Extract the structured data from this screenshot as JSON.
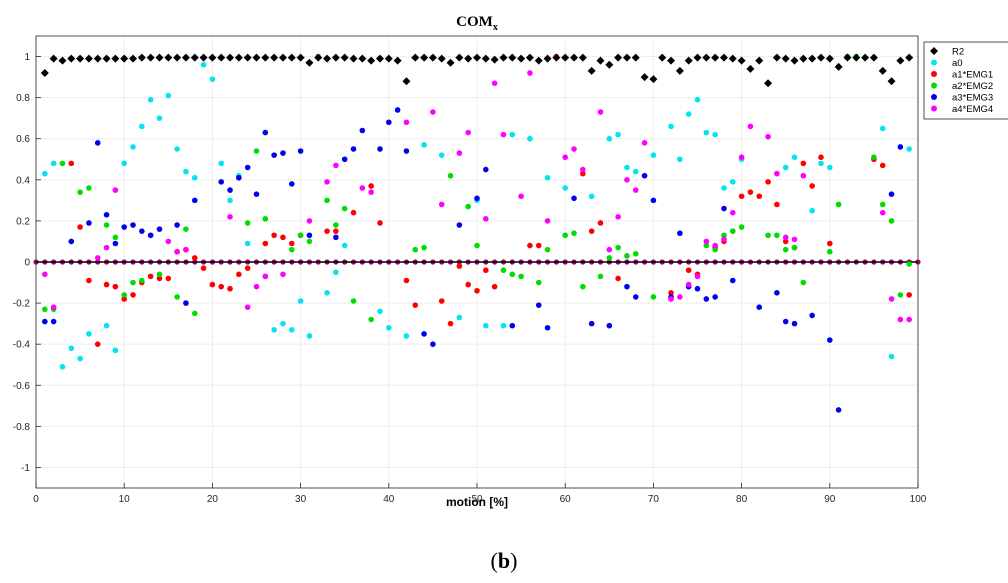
{
  "panel_label": {
    "open": "(",
    "letter": "b",
    "close": ")"
  },
  "chart_data": {
    "type": "scatter",
    "title": "COM",
    "title_subscript": "x",
    "xlabel": "motion [%]",
    "ylabel": "",
    "xlim": [
      0,
      100
    ],
    "ylim": [
      -1.1,
      1.1
    ],
    "xticks": [
      0,
      10,
      20,
      30,
      40,
      50,
      60,
      70,
      80,
      90,
      100
    ],
    "xtick_labels": [
      "0",
      "10",
      "20",
      "30",
      "40",
      "50",
      "60",
      "70",
      "80",
      "90",
      "100"
    ],
    "yticks": [
      -1,
      -0.8,
      -0.6,
      -0.4,
      -0.2,
      0,
      0.2,
      0.4,
      0.6,
      0.8,
      1
    ],
    "ytick_labels": [
      "-1",
      "-0.8",
      "-0.6",
      "-0.4",
      "-0.2",
      "0",
      "0.2",
      "0.4",
      "0.6",
      "0.8",
      "1"
    ],
    "grid": true,
    "legend_position": "right",
    "baseline_marker_color": "#9b006b",
    "series": [
      {
        "name": "R2",
        "marker": "diamond",
        "color": "#000000",
        "x": [
          1,
          2,
          3,
          4,
          5,
          6,
          7,
          8,
          9,
          10,
          11,
          12,
          13,
          14,
          15,
          16,
          17,
          18,
          19,
          20,
          21,
          22,
          23,
          24,
          25,
          26,
          27,
          28,
          29,
          30,
          31,
          32,
          33,
          34,
          35,
          36,
          37,
          38,
          39,
          40,
          41,
          42,
          43,
          44,
          45,
          46,
          47,
          48,
          49,
          50,
          51,
          52,
          53,
          54,
          55,
          56,
          57,
          58,
          59,
          60,
          61,
          62,
          63,
          64,
          65,
          66,
          67,
          68,
          69,
          70,
          71,
          72,
          73,
          74,
          75,
          76,
          77,
          78,
          79,
          80,
          81,
          82,
          83,
          84,
          85,
          86,
          87,
          88,
          89,
          90,
          91,
          92,
          93,
          94,
          95,
          96,
          97,
          98,
          99
        ],
        "y": [
          0.92,
          0.99,
          0.98,
          0.99,
          0.99,
          0.99,
          0.99,
          0.99,
          0.99,
          0.99,
          0.99,
          0.995,
          0.995,
          0.995,
          0.995,
          0.995,
          0.995,
          0.995,
          0.995,
          0.995,
          0.995,
          0.995,
          0.995,
          0.995,
          0.995,
          0.995,
          0.995,
          0.995,
          0.995,
          0.995,
          0.97,
          0.995,
          0.99,
          0.995,
          0.995,
          0.99,
          0.99,
          0.98,
          0.99,
          0.99,
          0.98,
          0.88,
          0.995,
          0.995,
          0.995,
          0.99,
          0.97,
          0.995,
          0.99,
          0.995,
          0.99,
          0.985,
          0.995,
          0.995,
          0.99,
          0.995,
          0.98,
          0.99,
          0.995,
          0.995,
          0.995,
          0.995,
          0.93,
          0.98,
          0.96,
          0.995,
          0.995,
          0.995,
          0.9,
          0.89,
          0.995,
          0.98,
          0.93,
          0.98,
          0.995,
          0.995,
          0.995,
          0.995,
          0.99,
          0.98,
          0.94,
          0.98,
          0.87,
          0.995,
          0.99,
          0.98,
          0.99,
          0.99,
          0.995,
          0.99,
          0.95,
          0.995,
          0.995,
          0.995,
          0.995,
          0.93,
          0.88,
          0.98,
          0.995
        ]
      },
      {
        "name": "a0",
        "marker": "circle",
        "color": "#00e5ee",
        "x": [
          1,
          2,
          3,
          4,
          5,
          6,
          7,
          8,
          9,
          10,
          11,
          12,
          13,
          14,
          15,
          16,
          17,
          18,
          19,
          20,
          21,
          22,
          23,
          24,
          25,
          26,
          27,
          28,
          29,
          30,
          31,
          32,
          33,
          34,
          35,
          36,
          37,
          38,
          39,
          40,
          41,
          42,
          43,
          44,
          45,
          46,
          47,
          48,
          49,
          50,
          51,
          52,
          53,
          54,
          55,
          56,
          57,
          58,
          59,
          60,
          61,
          62,
          63,
          64,
          65,
          66,
          67,
          68,
          69,
          70,
          71,
          72,
          73,
          74,
          75,
          76,
          77,
          78,
          79,
          80,
          81,
          82,
          83,
          84,
          85,
          86,
          87,
          88,
          89,
          90,
          91,
          92,
          93,
          94,
          95,
          96,
          97,
          98,
          99
        ],
        "y": [
          0.43,
          0.48,
          -0.51,
          -0.42,
          -0.47,
          -0.35,
          0.0,
          -0.31,
          -0.43,
          0.48,
          0.56,
          0.66,
          0.79,
          0.7,
          0.81,
          0.55,
          0.44,
          0.41,
          0.96,
          0.89,
          0.48,
          0.3,
          0.42,
          0.09,
          0.0,
          -0.07,
          -0.33,
          -0.3,
          -0.33,
          -0.19,
          -0.36,
          0.0,
          -0.15,
          -0.05,
          0.08,
          0.0,
          0.0,
          0.0,
          -0.24,
          -0.32,
          0.0,
          -0.36,
          0.0,
          0.57,
          0.0,
          0.52,
          0.0,
          -0.27,
          0.0,
          0.3,
          -0.31,
          0.0,
          -0.31,
          0.62,
          0.0,
          0.6,
          0.0,
          0.41,
          0.0,
          0.36,
          0.0,
          0.0,
          0.32,
          0.0,
          0.6,
          0.62,
          0.46,
          0.44,
          0.0,
          0.52,
          0.0,
          0.66,
          0.5,
          0.72,
          0.79,
          0.63,
          0.62,
          0.36,
          0.39,
          0.5,
          0.0,
          0.0,
          0.0,
          0.0,
          0.46,
          0.51,
          0.0,
          0.25,
          0.48,
          0.46,
          0.0,
          1.0,
          0.0,
          0.0,
          0.0,
          0.65,
          -0.46,
          0.56,
          0.55
        ]
      },
      {
        "name": "a1*EMG1",
        "marker": "circle",
        "color": "#ff0000",
        "x": [
          1,
          2,
          3,
          4,
          5,
          6,
          7,
          8,
          9,
          10,
          11,
          12,
          13,
          14,
          15,
          16,
          17,
          18,
          19,
          20,
          21,
          22,
          23,
          24,
          25,
          26,
          27,
          28,
          29,
          30,
          31,
          32,
          33,
          34,
          35,
          36,
          37,
          38,
          39,
          40,
          41,
          42,
          43,
          44,
          45,
          46,
          47,
          48,
          49,
          50,
          51,
          52,
          53,
          54,
          55,
          56,
          57,
          58,
          59,
          60,
          61,
          62,
          63,
          64,
          65,
          66,
          67,
          68,
          69,
          70,
          71,
          72,
          73,
          74,
          75,
          76,
          77,
          78,
          79,
          80,
          81,
          82,
          83,
          84,
          85,
          86,
          87,
          88,
          89,
          90,
          91,
          92,
          93,
          94,
          95,
          96,
          97,
          98,
          99
        ],
        "y": [
          0.0,
          0.0,
          0.0,
          0.48,
          0.17,
          -0.09,
          -0.4,
          -0.11,
          -0.12,
          -0.18,
          -0.16,
          -0.1,
          -0.07,
          -0.08,
          -0.08,
          0.05,
          0.06,
          0.02,
          -0.03,
          -0.11,
          -0.12,
          -0.13,
          -0.06,
          -0.03,
          0.0,
          0.09,
          0.13,
          0.12,
          0.09,
          0.13,
          0.0,
          0.0,
          0.15,
          0.15,
          0.0,
          0.24,
          0.0,
          0.37,
          0.19,
          0.0,
          0.0,
          -0.09,
          -0.21,
          0.0,
          0.0,
          -0.19,
          -0.3,
          -0.02,
          -0.11,
          -0.14,
          -0.04,
          -0.12,
          0.0,
          0.0,
          0.0,
          0.08,
          0.08,
          0.0,
          0.0,
          0.0,
          0.0,
          0.43,
          0.15,
          0.19,
          0.0,
          -0.08,
          0.0,
          0.0,
          0.0,
          0.0,
          0.0,
          -0.15,
          0.0,
          -0.04,
          -0.06,
          0.0,
          0.07,
          0.1,
          0.15,
          0.32,
          0.34,
          0.32,
          0.39,
          0.28,
          0.1,
          0.07,
          0.48,
          0.37,
          0.51,
          0.09,
          0.0,
          0.0,
          0.0,
          0.0,
          0.5,
          0.47,
          0.0,
          0.0,
          -0.16
        ]
      },
      {
        "name": "a2*EMG2",
        "marker": "circle",
        "color": "#00dd00",
        "x": [
          1,
          2,
          3,
          4,
          5,
          6,
          7,
          8,
          9,
          10,
          11,
          12,
          13,
          14,
          15,
          16,
          17,
          18,
          19,
          20,
          21,
          22,
          23,
          24,
          25,
          26,
          27,
          28,
          29,
          30,
          31,
          32,
          33,
          34,
          35,
          36,
          37,
          38,
          39,
          40,
          41,
          42,
          43,
          44,
          45,
          46,
          47,
          48,
          49,
          50,
          51,
          52,
          53,
          54,
          55,
          56,
          57,
          58,
          59,
          60,
          61,
          62,
          63,
          64,
          65,
          66,
          67,
          68,
          69,
          70,
          71,
          72,
          73,
          74,
          75,
          76,
          77,
          78,
          79,
          80,
          81,
          82,
          83,
          84,
          85,
          86,
          87,
          88,
          89,
          90,
          91,
          92,
          93,
          94,
          95,
          96,
          97,
          98,
          99
        ],
        "y": [
          -0.23,
          -0.23,
          0.48,
          0.0,
          0.34,
          0.36,
          0.0,
          0.18,
          0.12,
          -0.16,
          -0.1,
          -0.09,
          0.0,
          -0.06,
          0.0,
          -0.17,
          0.16,
          -0.25,
          0.0,
          0.0,
          0.0,
          0.0,
          0.0,
          0.19,
          0.54,
          0.21,
          0.0,
          0.0,
          0.06,
          0.13,
          0.1,
          1.0,
          0.3,
          0.18,
          0.26,
          -0.19,
          0.0,
          -0.28,
          0.0,
          0.0,
          0.0,
          0.0,
          0.06,
          0.07,
          0.0,
          0.0,
          0.42,
          0.0,
          0.27,
          0.08,
          0.0,
          0.0,
          -0.04,
          -0.06,
          -0.07,
          0.0,
          -0.1,
          0.06,
          0.0,
          0.13,
          0.14,
          -0.12,
          0.0,
          -0.07,
          0.02,
          0.07,
          0.03,
          0.04,
          0.0,
          -0.17,
          0.0,
          0.0,
          0.0,
          0.0,
          0.0,
          0.08,
          0.06,
          0.13,
          0.15,
          0.17,
          0.0,
          0.0,
          0.13,
          0.13,
          0.06,
          0.07,
          -0.1,
          0.0,
          0.0,
          0.05,
          0.28,
          1.0,
          1.0,
          0.0,
          0.51,
          0.28,
          0.2,
          -0.16,
          -0.01
        ]
      },
      {
        "name": "a3*EMG3",
        "marker": "circle",
        "color": "#0000ee",
        "x": [
          1,
          2,
          3,
          4,
          5,
          6,
          7,
          8,
          9,
          10,
          11,
          12,
          13,
          14,
          15,
          16,
          17,
          18,
          19,
          20,
          21,
          22,
          23,
          24,
          25,
          26,
          27,
          28,
          29,
          30,
          31,
          32,
          33,
          34,
          35,
          36,
          37,
          38,
          39,
          40,
          41,
          42,
          43,
          44,
          45,
          46,
          47,
          48,
          49,
          50,
          51,
          52,
          53,
          54,
          55,
          56,
          57,
          58,
          59,
          60,
          61,
          62,
          63,
          64,
          65,
          66,
          67,
          68,
          69,
          70,
          71,
          72,
          73,
          74,
          75,
          76,
          77,
          78,
          79,
          80,
          81,
          82,
          83,
          84,
          85,
          86,
          87,
          88,
          89,
          90,
          91,
          92,
          93,
          94,
          95,
          96,
          97,
          98,
          99
        ],
        "y": [
          -0.29,
          -0.29,
          0.0,
          0.1,
          0.0,
          0.19,
          0.58,
          0.23,
          0.09,
          0.17,
          0.18,
          0.15,
          0.13,
          0.16,
          0.0,
          0.18,
          -0.2,
          0.3,
          0.0,
          0.0,
          0.39,
          0.35,
          0.41,
          0.46,
          0.33,
          0.63,
          0.52,
          0.53,
          0.38,
          0.54,
          0.13,
          0.0,
          0.0,
          0.12,
          0.5,
          0.55,
          0.64,
          0.0,
          0.55,
          0.68,
          0.74,
          0.54,
          0.0,
          -0.35,
          -0.4,
          0.0,
          0.0,
          0.18,
          0.0,
          0.31,
          0.45,
          0.0,
          0.0,
          -0.31,
          0.0,
          0.0,
          -0.21,
          -0.32,
          0.0,
          0.0,
          0.31,
          0.0,
          -0.3,
          0.0,
          -0.31,
          0.0,
          -0.12,
          -0.17,
          0.42,
          0.3,
          0.0,
          -0.17,
          0.14,
          -0.12,
          -0.13,
          -0.18,
          -0.17,
          0.26,
          -0.09,
          0.0,
          0.0,
          -0.22,
          0.0,
          -0.15,
          -0.29,
          -0.3,
          0.0,
          -0.26,
          0.0,
          -0.38,
          -0.72,
          0.0,
          0.0,
          0.0,
          0.0,
          0.0,
          0.33,
          0.56,
          0.0
        ]
      },
      {
        "name": "a4*EMG4",
        "marker": "circle",
        "color": "#ff00ff",
        "x": [
          1,
          2,
          3,
          4,
          5,
          6,
          7,
          8,
          9,
          10,
          11,
          12,
          13,
          14,
          15,
          16,
          17,
          18,
          19,
          20,
          21,
          22,
          23,
          24,
          25,
          26,
          27,
          28,
          29,
          30,
          31,
          32,
          33,
          34,
          35,
          36,
          37,
          38,
          39,
          40,
          41,
          42,
          43,
          44,
          45,
          46,
          47,
          48,
          49,
          50,
          51,
          52,
          53,
          54,
          55,
          56,
          57,
          58,
          59,
          60,
          61,
          62,
          63,
          64,
          65,
          66,
          67,
          68,
          69,
          70,
          71,
          72,
          73,
          74,
          75,
          76,
          77,
          78,
          79,
          80,
          81,
          82,
          83,
          84,
          85,
          86,
          87,
          88,
          89,
          90,
          91,
          92,
          93,
          94,
          95,
          96,
          97,
          98,
          99
        ],
        "y": [
          -0.06,
          -0.22,
          0.0,
          0.0,
          0.0,
          0.0,
          0.02,
          0.07,
          0.35,
          0.0,
          0.0,
          0.0,
          0.0,
          0.0,
          0.1,
          0.05,
          0.06,
          0.0,
          0.0,
          0.0,
          0.0,
          0.22,
          0.0,
          -0.22,
          -0.12,
          -0.07,
          0.0,
          -0.06,
          0.0,
          0.0,
          0.2,
          0.0,
          0.39,
          0.47,
          0.0,
          0.0,
          0.36,
          0.34,
          0.0,
          0.0,
          0.0,
          0.68,
          0.0,
          0.0,
          0.73,
          0.28,
          0.0,
          0.53,
          0.63,
          0.0,
          0.21,
          0.87,
          0.62,
          0.0,
          0.32,
          0.92,
          0.0,
          0.2,
          1.0,
          0.51,
          0.55,
          0.45,
          0.0,
          0.73,
          0.06,
          0.22,
          0.4,
          0.35,
          0.58,
          0.0,
          0.0,
          -0.18,
          -0.17,
          -0.11,
          -0.07,
          0.1,
          0.08,
          0.11,
          0.24,
          0.51,
          0.66,
          0.0,
          0.61,
          0.43,
          0.12,
          0.11,
          0.42,
          0.0,
          0.0,
          0.0,
          0.0,
          0.0,
          0.0,
          0.0,
          0.0,
          0.24,
          -0.18,
          -0.28,
          -0.28
        ]
      }
    ]
  }
}
